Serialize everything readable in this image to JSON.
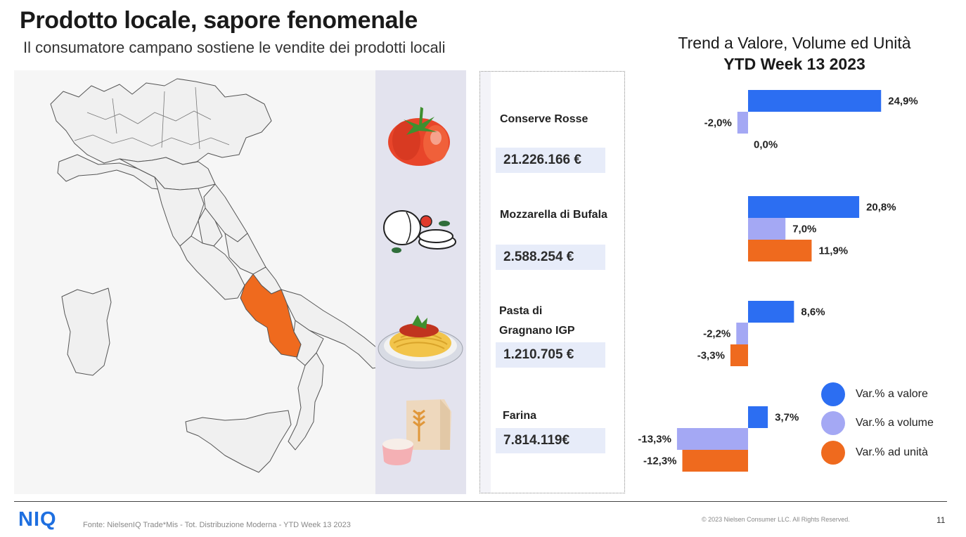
{
  "header": {
    "title": "Prodotto locale, sapore fenomenale",
    "subtitle": "Il consumatore campano sostiene le vendite dei prodotti locali"
  },
  "map": {
    "highlighted_region": "Campania",
    "highlight_color": "#ef6a1e",
    "region_fill": "#f0f0f0",
    "region_stroke": "#555555"
  },
  "categories": [
    {
      "label": "Conserve Rosse",
      "value": "21.226.166 €",
      "icon": "tomato-icon"
    },
    {
      "label": "Mozzarella di Bufala",
      "value": "2.588.254 €",
      "icon": "mozzarella-icon"
    },
    {
      "label": "Pasta di Gragnano IGP",
      "value": "1.210.705 €",
      "icon": "pasta-plate-icon"
    },
    {
      "label": "Farina",
      "value": "7.814.119€",
      "icon": "flour-bag-icon"
    }
  ],
  "colors": {
    "valore": "#2c6ef2",
    "volume": "#a4a8f4",
    "unita": "#ef6a1e",
    "value_box": "#e7ecf9"
  },
  "chart_data": {
    "type": "bar",
    "orientation": "horizontal",
    "title": "Trend a Valore, Volume ed Unità",
    "subtitle": "YTD Week 13 2023",
    "categories": [
      "Conserve Rosse",
      "Mozzarella di Bufala",
      "Pasta di Gragnano IGP",
      "Farina"
    ],
    "series": [
      {
        "name": "Var.% a valore",
        "values": [
          24.9,
          20.8,
          8.6,
          3.7
        ],
        "labels": [
          "24,9%",
          "20,8%",
          "8,6%",
          "3,7%"
        ]
      },
      {
        "name": "Var.% a volume",
        "values": [
          -2.0,
          7.0,
          -2.2,
          -13.3
        ],
        "labels": [
          "-2,0%",
          "7,0%",
          "-2,2%",
          "-13,3%"
        ]
      },
      {
        "name": "Var.% ad unità",
        "values": [
          0.0,
          11.9,
          -3.3,
          -12.3
        ],
        "labels": [
          "0,0%",
          "11,9%",
          "-3,3%",
          "-12,3%"
        ]
      }
    ],
    "grid": false,
    "legend": "bottom-right"
  },
  "footer": {
    "logo": "NIQ",
    "source": "Fonte: NielsenIQ Trade*Mis - Tot. Distribuzione Moderna - YTD Week 13 2023",
    "copyright": "© 2023 Nielsen Consumer LLC. All Rights Reserved.",
    "page_number": "11"
  }
}
